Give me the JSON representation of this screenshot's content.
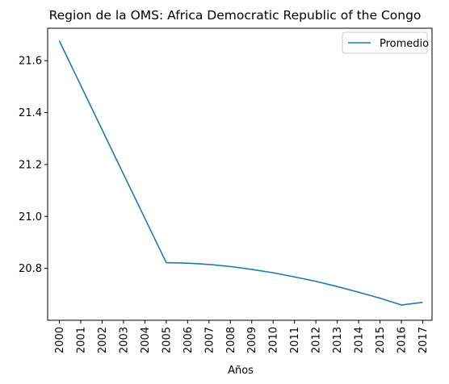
{
  "chart_data": {
    "type": "line",
    "title": "Region de la OMS: Africa  Democratic Republic of the Congo",
    "xlabel": "Años",
    "ylabel": "",
    "x": [
      "2000",
      "2001",
      "2002",
      "2003",
      "2004",
      "2005",
      "2006",
      "2007",
      "2008",
      "2009",
      "2010",
      "2011",
      "2012",
      "2013",
      "2014",
      "2015",
      "2016",
      "2017"
    ],
    "series": [
      {
        "name": "Promedio",
        "color": "#1f77b4",
        "values": [
          21.676,
          21.505,
          21.334,
          21.163,
          20.993,
          20.822,
          20.82,
          20.815,
          20.807,
          20.796,
          20.783,
          20.767,
          20.75,
          20.73,
          20.708,
          20.685,
          20.659,
          20.669
        ]
      }
    ],
    "yticks": [
      20.8,
      21.0,
      21.2,
      21.4,
      21.6
    ],
    "ytick_labels": [
      "20.8",
      "21.0",
      "21.2",
      "21.4",
      "21.6"
    ],
    "ylim": [
      20.6,
      21.725
    ],
    "grid": false,
    "legend_position": "upper right"
  }
}
